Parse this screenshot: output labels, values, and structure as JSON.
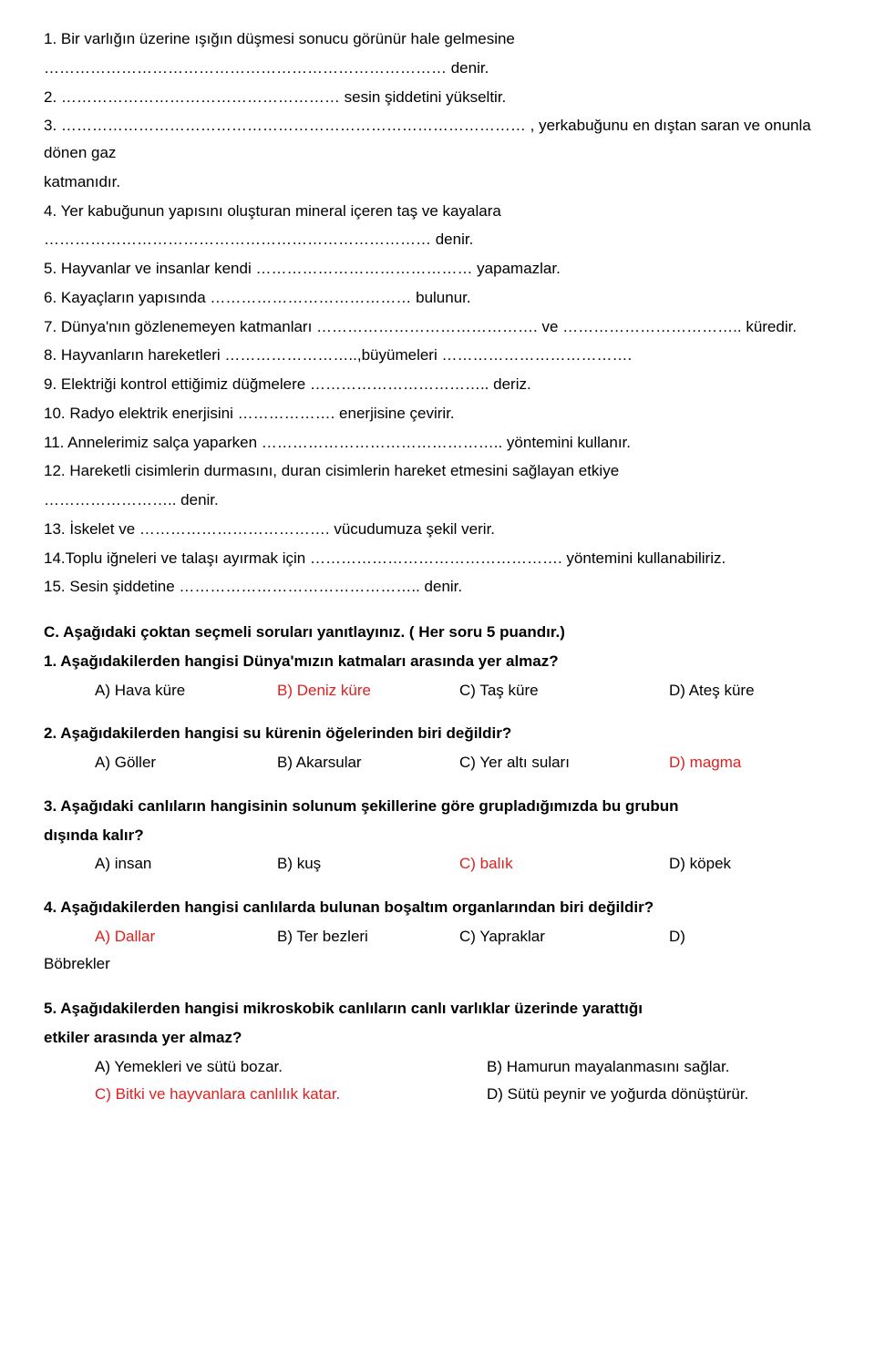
{
  "fill": {
    "q1": "1. Bir varlığın üzerine ışığın düşmesi sonucu görünür hale gelmesine",
    "q1b": "…………………………………………………………………… denir.",
    "q2": "2. ……………………………………………… sesin şiddetini yükseltir.",
    "q3": "3. ……………………………………………………………………………… , yerkabuğunu en dıştan saran ve onunla dönen gaz",
    "q3b": "katmanıdır.",
    "q4": "4. Yer kabuğunun yapısını oluşturan mineral içeren taş ve kayalara",
    "q4b": "………………………………………………………………… denir.",
    "q5": "5. Hayvanlar ve insanlar kendi …………………………………… yapamazlar.",
    "q6": "6. Kayaçların yapısında  ………………………………… bulunur.",
    "q7": "7. Dünya'nın gözlenemeyen katmanları ……………………………………. ve …………………………….. küredir.",
    "q8": "8. Hayvanların hareketleri  ……………………..,büyümeleri ……………………………….",
    "q9": "9. Elektriği kontrol ettiğimiz düğmelere …………………………….. deriz.",
    "q10": "10. Radyo elektrik enerjisini ………………. enerjisine çevirir.",
    "q11": "11. Annelerimiz salça yaparken  ……………………………………….. yöntemini kullanır.",
    "q12": "12. Hareketli cisimlerin durmasını, duran cisimlerin hareket etmesini sağlayan etkiye",
    "q12b": "…………………….. denir.",
    "q13": "13. İskelet ve ………………………………. vücudumuza şekil verir.",
    "q14": "14.Toplu iğneleri ve talaşı ayırmak için  …………………………………………. yöntemini kullanabiliriz.",
    "q15": "15. Sesin şiddetine ……………………………………….. denir."
  },
  "sectionC": "C. Aşağıdaki çoktan seçmeli soruları yanıtlayınız. ( Her soru 5 puandır.)",
  "mc": {
    "q1": {
      "stem": "1.  Aşağıdakilerden hangisi Dünya'mızın katmaları arasında yer almaz?",
      "a": "A) Hava küre",
      "b": "B) Deniz küre",
      "c": "C) Taş küre",
      "d": "D) Ateş küre"
    },
    "q2": {
      "stem": "2. Aşağıdakilerden hangisi su kürenin öğelerinden biri değildir?",
      "a": "A) Göller",
      "b": "B) Akarsular",
      "c": "C) Yer altı suları",
      "d": "D) magma"
    },
    "q3": {
      "stem1": "3. Aşağıdaki canlıların hangisinin solunum şekillerine göre grupladığımızda bu grubun",
      "stem2": "dışında kalır?",
      "a": "A) insan",
      "b": "B) kuş",
      "c": "C) balık",
      "d": "D) köpek"
    },
    "q4": {
      "stem": "4. Aşağıdakilerden hangisi canlılarda bulunan boşaltım organlarından biri değildir?",
      "a": "A) Dallar",
      "b": "B) Ter bezleri",
      "c": "C) Yapraklar",
      "d": "D)",
      "extra": "Böbrekler"
    },
    "q5": {
      "stem1": "5. Aşağıdakilerden hangisi mikroskobik canlıların canlı varlıklar üzerinde yarattığı",
      "stem2": "etkiler arasında yer almaz?",
      "a": "A) Yemekleri ve sütü bozar.",
      "b": "B) Hamurun mayalanmasını sağlar.",
      "c": "C) Bitki ve hayvanlara canlılık katar.",
      "d": "D) Sütü peynir ve yoğurda dönüştürür."
    }
  },
  "colors": {
    "text": "#000000",
    "accent": "#e02020",
    "background": "#ffffff"
  }
}
